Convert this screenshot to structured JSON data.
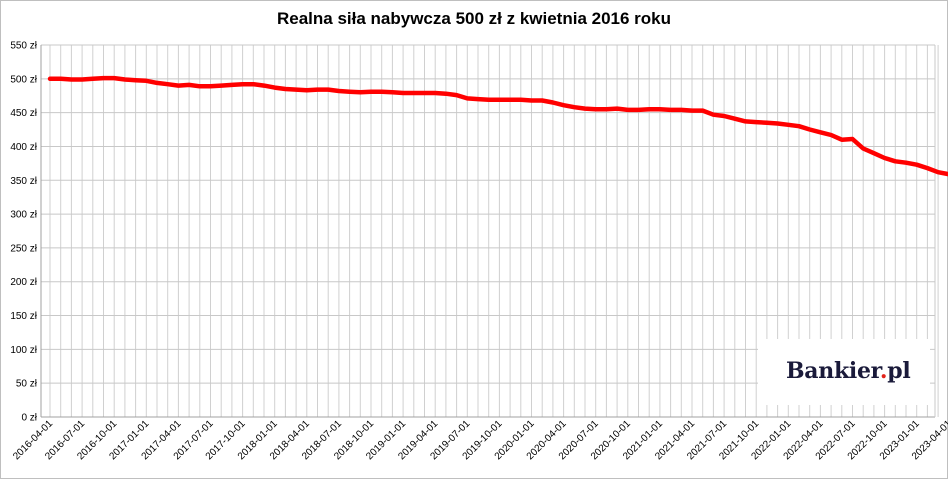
{
  "chart_data": {
    "type": "line",
    "title": "Realna siła nabywcza 500 zł z kwietnia 2016 roku",
    "xlabel": "",
    "ylabel": "",
    "ylim": [
      0,
      550
    ],
    "yticks": [
      "0 zł",
      "50 zł",
      "100 zł",
      "150 zł",
      "200 zł",
      "250 zł",
      "300 zł",
      "350 zł",
      "400 zł",
      "450 zł",
      "500 zł",
      "550 zł"
    ],
    "xtick_labels": [
      "2016-04-01",
      "2016-07-01",
      "2016-10-01",
      "2017-01-01",
      "2017-04-01",
      "2017-07-01",
      "2017-10-01",
      "2018-01-01",
      "2018-04-01",
      "2018-07-01",
      "2018-10-01",
      "2019-01-01",
      "2019-04-01",
      "2019-07-01",
      "2019-10-01",
      "2020-01-01",
      "2020-04-01",
      "2020-07-01",
      "2020-10-01",
      "2021-01-01",
      "2021-04-01",
      "2021-07-01",
      "2021-10-01",
      "2022-01-01",
      "2022-04-01",
      "2022-07-01",
      "2022-10-01",
      "2023-01-01",
      "2023-04-01"
    ],
    "grid": true,
    "line_color": "#ff0000",
    "series": [
      {
        "values": [
          500,
          500,
          499,
          499,
          500,
          501,
          501,
          499,
          498,
          497,
          494,
          492,
          490,
          491,
          489,
          489,
          490,
          491,
          492,
          492,
          490,
          487,
          485,
          484,
          483,
          484,
          484,
          482,
          481,
          480,
          481,
          481,
          480,
          479,
          479,
          479,
          479,
          478,
          476,
          471,
          470,
          469,
          469,
          469,
          469,
          468,
          468,
          465,
          461,
          458,
          456,
          455,
          455,
          456,
          454,
          454,
          455,
          455,
          454,
          454,
          453,
          453,
          447,
          445,
          441,
          437,
          436,
          435,
          434,
          432,
          430,
          425,
          421,
          417,
          410,
          411,
          397,
          390,
          383,
          378,
          376,
          373,
          368,
          362,
          359,
          358,
          357,
          349,
          345,
          342,
          340,
          338
        ]
      }
    ]
  },
  "logo": {
    "name": "Bankier",
    "dot": ".",
    "tld": "pl"
  }
}
